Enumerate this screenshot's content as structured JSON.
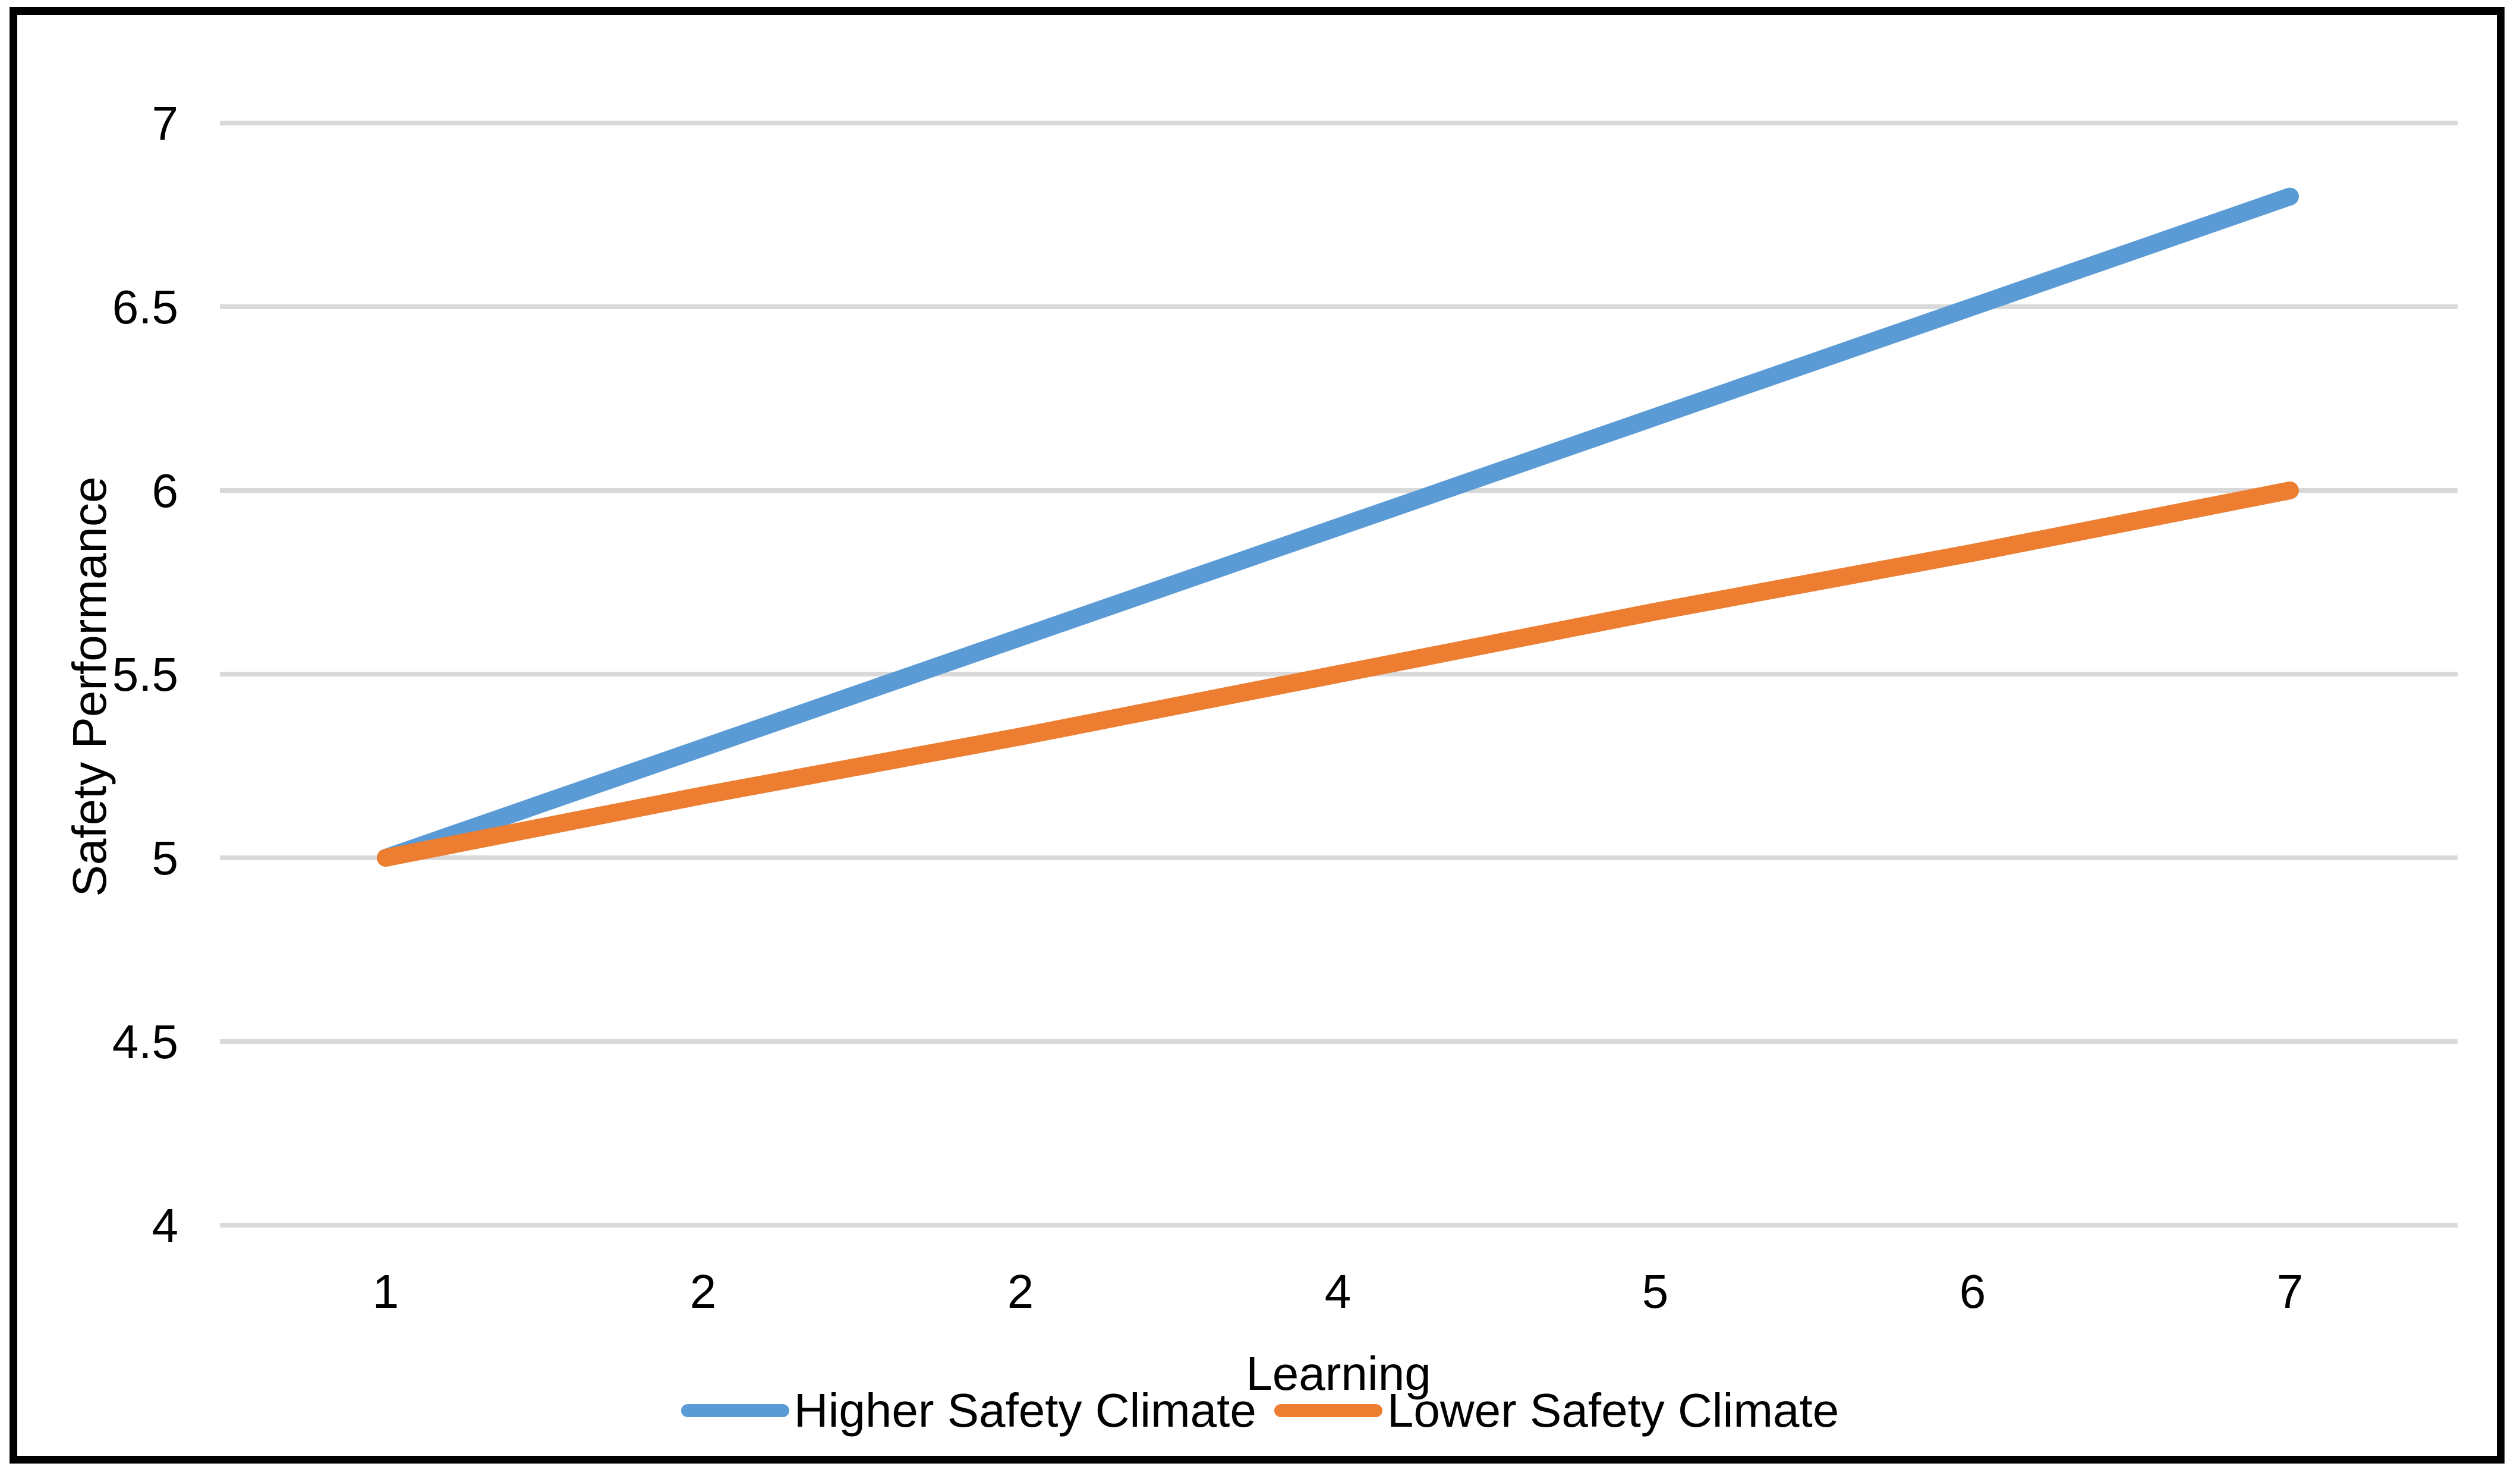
{
  "window": {
    "background_color": "#FFFFFF",
    "border_color": "#000000"
  },
  "chart_data": {
    "type": "line",
    "title": "",
    "xlabel": "Learning",
    "ylabel": "Safety Performance",
    "x_tick_labels": [
      "1",
      "2",
      "2",
      "4",
      "5",
      "6",
      "7"
    ],
    "y_tick_labels": [
      "7",
      "6.5",
      "6",
      "5.5",
      "5",
      "4.5",
      "4"
    ],
    "y_tick_values": [
      7,
      6.5,
      6,
      5.5,
      5,
      4.5,
      4
    ],
    "ylim": [
      4,
      7
    ],
    "grid": "horizontal",
    "gridline_color": "#D9D9D9",
    "text_color": "#000000",
    "legend_position": "bottom",
    "series": [
      {
        "name": "Higher Safety Climate",
        "color": "#5B9BD5",
        "values": [
          5.0,
          5.3,
          5.6,
          5.9,
          6.2,
          6.5,
          6.8
        ]
      },
      {
        "name": "Lower Safety Climate",
        "color": "#ED7D31",
        "values": [
          5.0,
          5.17,
          5.33,
          5.5,
          5.67,
          5.83,
          6.0
        ]
      }
    ]
  }
}
